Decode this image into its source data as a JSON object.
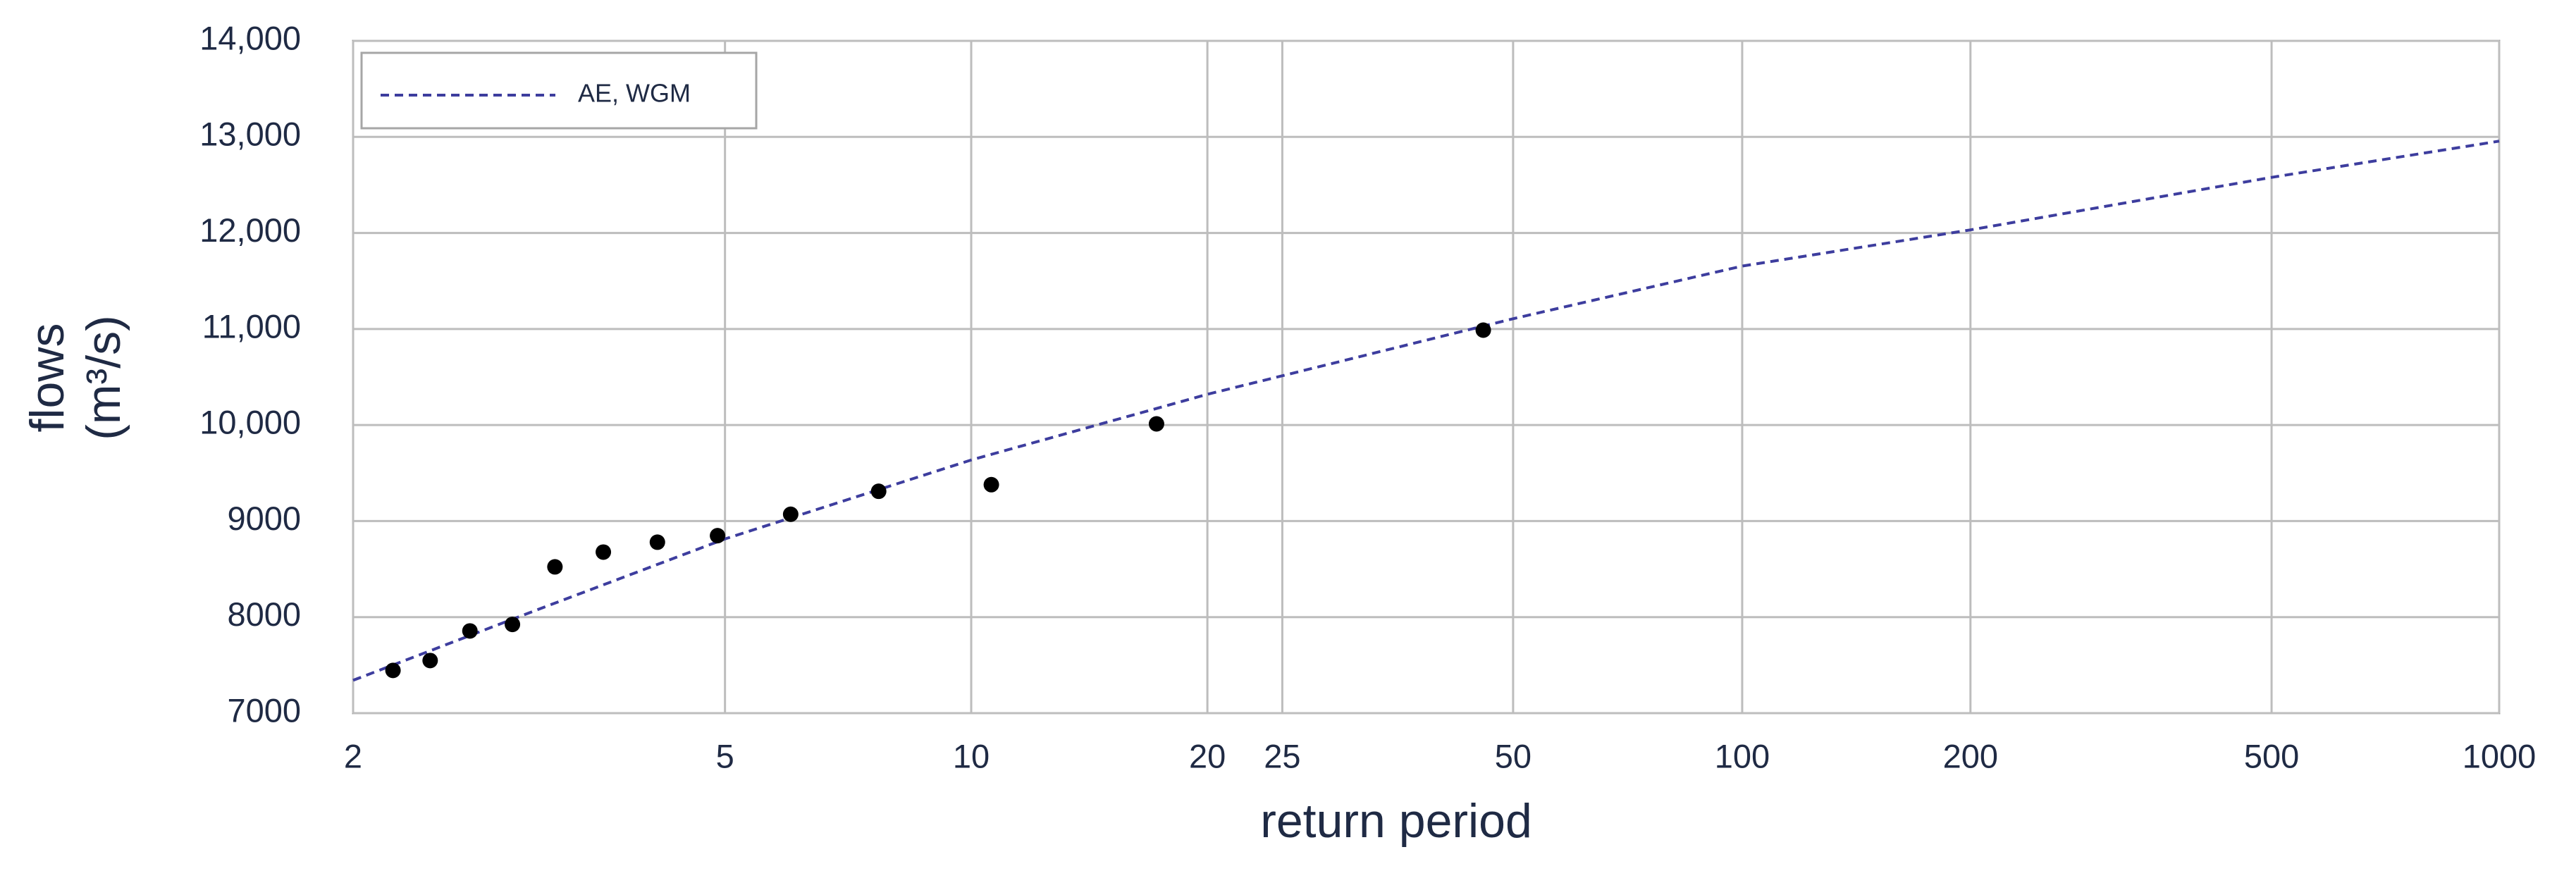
{
  "chart_data": {
    "type": "scatter",
    "x_label": "return period",
    "y_label": [
      "flows",
      "(m³/s)"
    ],
    "xscale": "gumbel",
    "xlim": [
      2,
      1000
    ],
    "xticks": [
      2,
      5,
      10,
      20,
      25,
      50,
      100,
      200,
      500,
      1000
    ],
    "ylim": [
      7000,
      14000
    ],
    "yticks": [
      7000,
      8000,
      9000,
      {
        "value": 10000,
        "label": "10,000"
      },
      {
        "value": 11000,
        "label": "11,000"
      },
      {
        "value": 12000,
        "label": "12,000"
      },
      {
        "value": 13000,
        "label": "13,000"
      },
      {
        "value": 14000,
        "label": "14,000"
      }
    ],
    "grid": true,
    "legend": "upper left",
    "series": [
      {
        "type": "line",
        "name": "AE, WGM",
        "color": "#3d3d9e",
        "x": [
          2,
          3,
          5,
          10,
          20,
          50,
          100,
          200,
          500,
          1000
        ],
        "values": [
          7342,
          8044,
          8814,
          9636,
          10320,
          11107,
          11655,
          12032,
          12579,
          12956
        ]
      },
      {
        "type": "scatter",
        "color": "#000000",
        "x": [
          2.18,
          2.37,
          2.6,
          2.88,
          3.2,
          3.62,
          4.17,
          4.9,
          5.99,
          7.67,
          10.6,
          17.2,
          45.7
        ],
        "values": [
          7445,
          7548,
          7856,
          7924,
          8523,
          8677,
          8780,
          8848,
          9071,
          9310,
          9379,
          10012,
          10988
        ]
      }
    ]
  }
}
